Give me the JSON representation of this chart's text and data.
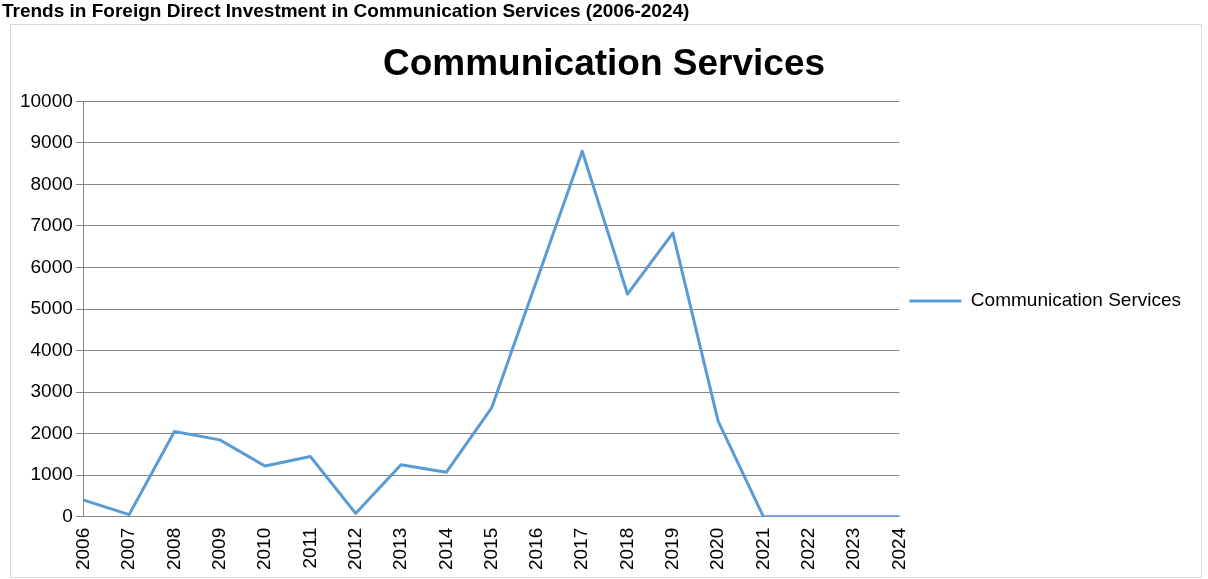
{
  "chart_data": {
    "type": "line",
    "title": "Communication Services",
    "annotations": [
      "Trends in Foreign Direct Investment in Communication Services (2006-2024)"
    ],
    "categories": [
      "2006",
      "2007",
      "2008",
      "2009",
      "2010",
      "2011",
      "2012",
      "2013",
      "2014",
      "2015",
      "2016",
      "2017",
      "2018",
      "2019",
      "2020",
      "2021",
      "2022",
      "2023",
      "2024"
    ],
    "series": [
      {
        "name": "Communication Services",
        "color": "#5b9bd5",
        "values": [
          400,
          50,
          2050,
          1850,
          1220,
          1450,
          80,
          1250,
          1070,
          2620,
          5700,
          8800,
          5360,
          6830,
          2300,
          0,
          0,
          0,
          0
        ]
      }
    ],
    "ylim": [
      0,
      10000
    ],
    "yticks": [
      0,
      1000,
      2000,
      3000,
      4000,
      5000,
      6000,
      7000,
      8000,
      9000,
      10000
    ],
    "grid": "y",
    "legend": "right",
    "marker": "none",
    "line_style": "solid"
  }
}
